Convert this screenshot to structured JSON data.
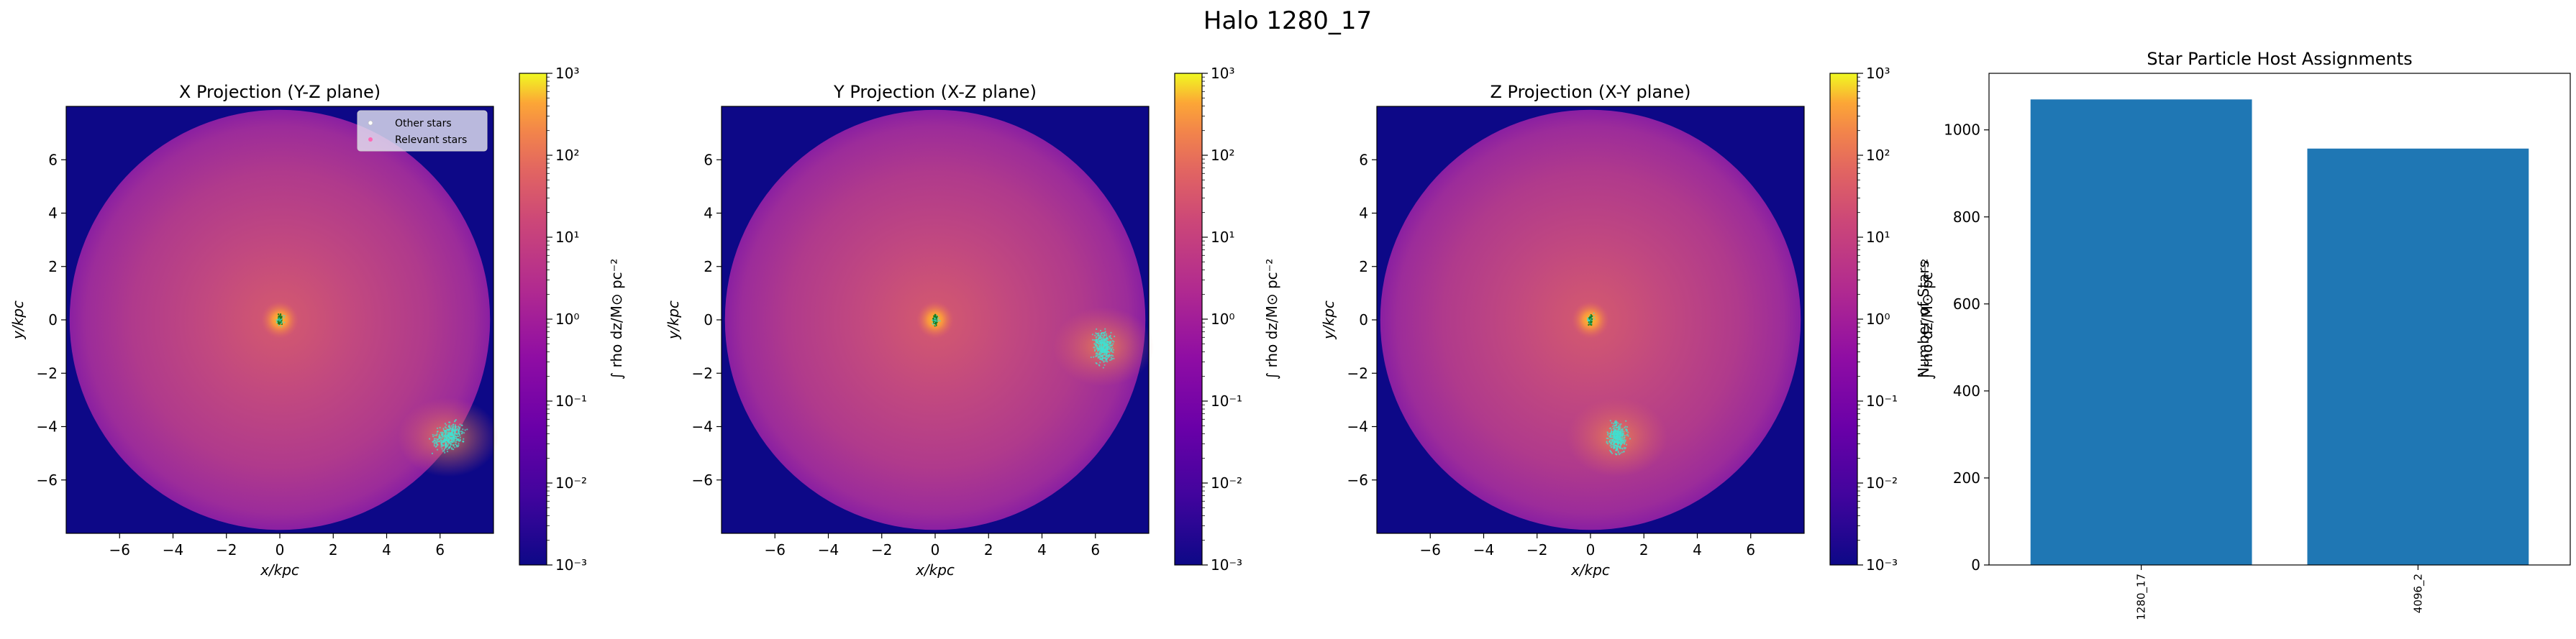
{
  "figure_title": "Halo 1280_17",
  "legend": {
    "items": [
      {
        "label": "Other stars",
        "color": "#ffffff"
      },
      {
        "label": "Relevant stars",
        "color": "#ff69b4"
      }
    ],
    "placement": "upper right of first panel"
  },
  "colors": {
    "bar": "#1f77b4",
    "stars_cluster": "#40e0d0",
    "stars_center": "#1e7b1e",
    "background_cmap": "plasma"
  },
  "chart_data": [
    {
      "type": "heatmap",
      "title": "X Projection (Y-Z plane)",
      "xlabel": "x/kpc",
      "ylabel": "y/kpc",
      "xlim": [
        -8,
        8
      ],
      "ylim": [
        -8,
        8
      ],
      "xticks": [
        -6,
        -4,
        -2,
        0,
        2,
        4,
        6
      ],
      "yticks": [
        -6,
        -4,
        -2,
        0,
        2,
        4,
        6
      ],
      "colorbar": {
        "label": "∫ rho dz/M⊙ pc⁻²",
        "scale": "log",
        "range": [
          0.001,
          1000
        ],
        "ticks": [
          "10⁻³",
          "10⁻²",
          "10⁻¹",
          "10⁰",
          "10¹",
          "10²",
          "10³"
        ]
      },
      "star_clusters": [
        {
          "x": 0.0,
          "y": 0.0,
          "kind": "center"
        },
        {
          "x": 6.3,
          "y": -4.4,
          "kind": "satellite"
        }
      ]
    },
    {
      "type": "heatmap",
      "title": "Y Projection (X-Z plane)",
      "xlabel": "x/kpc",
      "ylabel": "y/kpc",
      "xlim": [
        -8,
        8
      ],
      "ylim": [
        -8,
        8
      ],
      "xticks": [
        -6,
        -4,
        -2,
        0,
        2,
        4,
        6
      ],
      "yticks": [
        -6,
        -4,
        -2,
        0,
        2,
        4,
        6
      ],
      "colorbar": {
        "label": "∫ rho dz/M⊙ pc⁻²",
        "scale": "log",
        "range": [
          0.001,
          1000
        ],
        "ticks": [
          "10⁻³",
          "10⁻²",
          "10⁻¹",
          "10⁰",
          "10¹",
          "10²",
          "10³"
        ]
      },
      "star_clusters": [
        {
          "x": 0.0,
          "y": 0.0,
          "kind": "center"
        },
        {
          "x": 6.3,
          "y": -1.0,
          "kind": "satellite"
        }
      ]
    },
    {
      "type": "heatmap",
      "title": "Z Projection (X-Y plane)",
      "xlabel": "x/kpc",
      "ylabel": "y/kpc",
      "xlim": [
        -8,
        8
      ],
      "ylim": [
        -8,
        8
      ],
      "xticks": [
        -6,
        -4,
        -2,
        0,
        2,
        4,
        6
      ],
      "yticks": [
        -6,
        -4,
        -2,
        0,
        2,
        4,
        6
      ],
      "colorbar": {
        "label": "∫ rho dz/M⊙ pc⁻²",
        "scale": "log",
        "range": [
          0.001,
          1000
        ],
        "ticks": [
          "10⁻³",
          "10⁻²",
          "10⁻¹",
          "10⁰",
          "10¹",
          "10²",
          "10³"
        ]
      },
      "star_clusters": [
        {
          "x": 0.0,
          "y": 0.0,
          "kind": "center"
        },
        {
          "x": 1.0,
          "y": -4.4,
          "kind": "satellite"
        }
      ]
    },
    {
      "type": "bar",
      "title": "Star Particle Host Assignments",
      "categories": [
        "1280_17",
        "4096_2"
      ],
      "values": [
        1070,
        957
      ],
      "xlabel": "",
      "ylabel": "Number of Stars",
      "ylim": [
        0,
        1130
      ],
      "yticks": [
        0,
        200,
        400,
        600,
        800,
        1000
      ]
    }
  ]
}
